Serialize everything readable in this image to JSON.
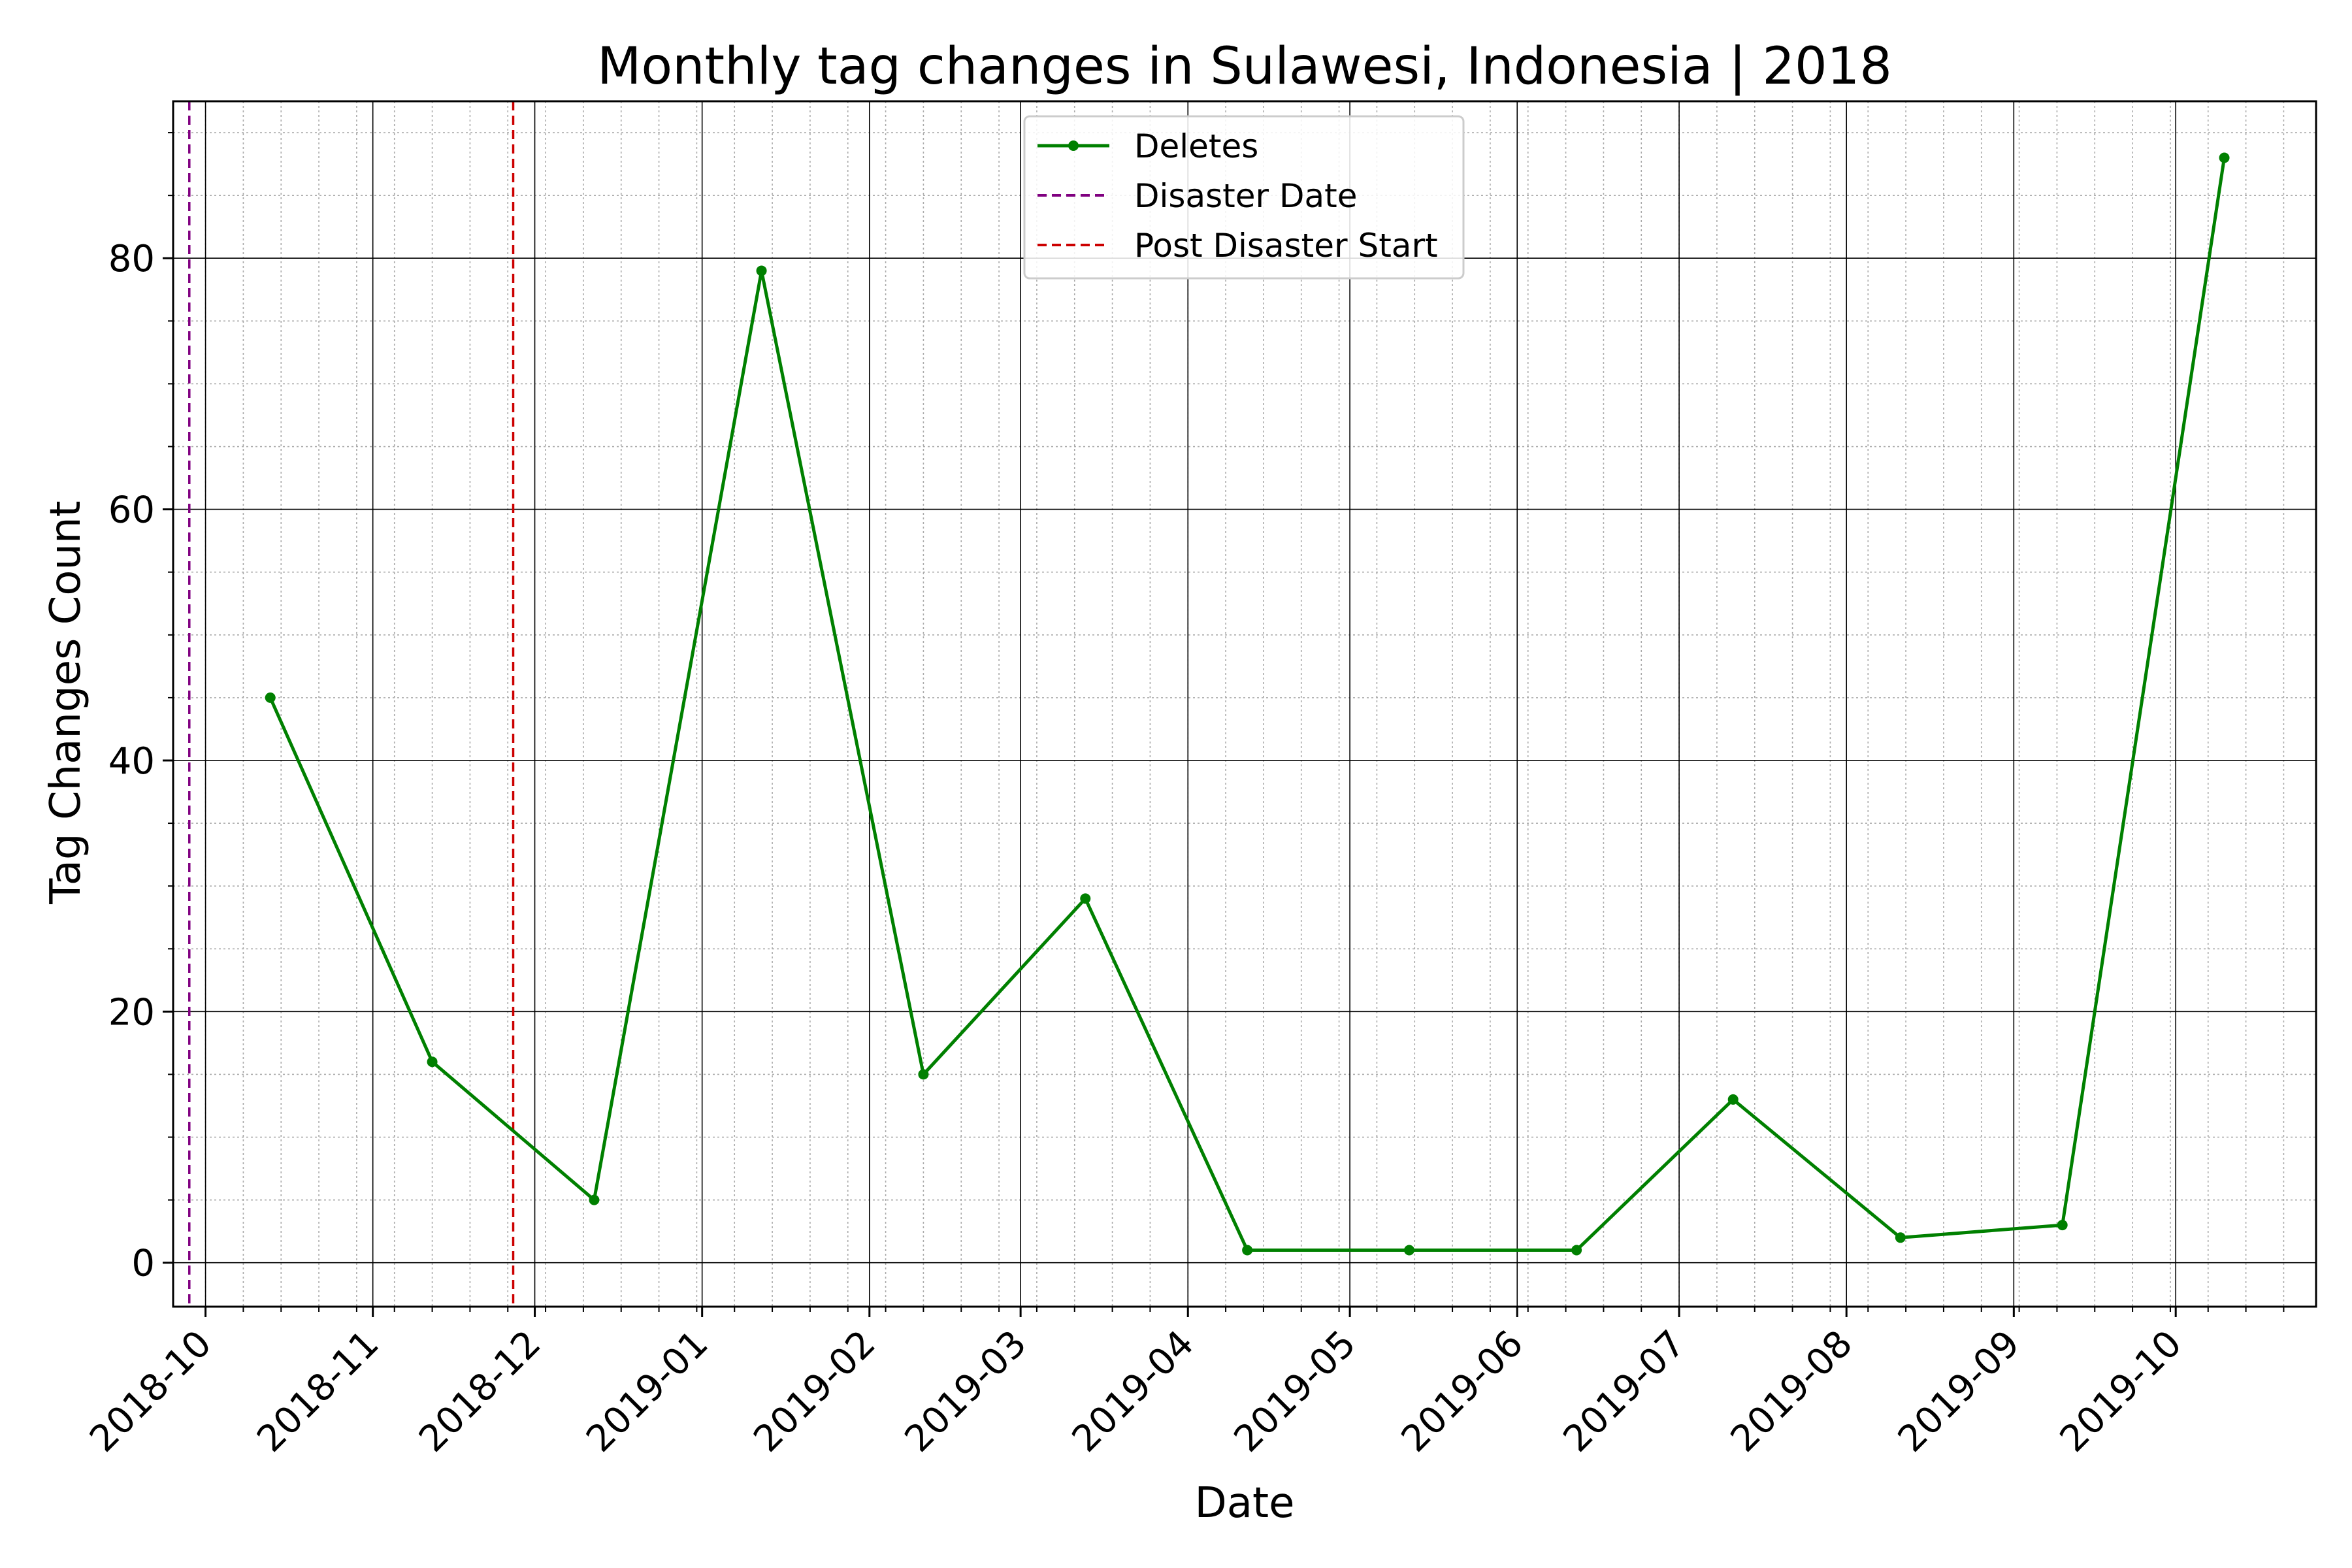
{
  "chart_data": {
    "type": "line",
    "title": "Monthly tag changes in Sulawesi, Indonesia | 2018",
    "xlabel": "Date",
    "ylabel": "Tag Changes Count",
    "xlim": [
      "2018-09-25",
      "2019-10-27"
    ],
    "ylim": [
      -3.5,
      92.5
    ],
    "x_ticks": [
      "2018-10",
      "2018-11",
      "2018-12",
      "2019-01",
      "2019-02",
      "2019-03",
      "2019-04",
      "2019-05",
      "2019-06",
      "2019-07",
      "2019-08",
      "2019-09",
      "2019-10"
    ],
    "x_tick_dates": [
      "2018-10-01",
      "2018-11-01",
      "2018-12-01",
      "2019-01-01",
      "2019-02-01",
      "2019-03-01",
      "2019-04-01",
      "2019-05-01",
      "2019-06-01",
      "2019-07-01",
      "2019-08-01",
      "2019-09-01",
      "2019-10-01"
    ],
    "y_ticks": [
      0,
      20,
      40,
      60,
      80
    ],
    "grid": true,
    "minor_grid": true,
    "legend_position": "top-center",
    "series": [
      {
        "name": "Deletes",
        "color": "#008000",
        "marker": "circle",
        "x": [
          "2018-10-13",
          "2018-11-12",
          "2018-12-12",
          "2019-01-12",
          "2019-02-11",
          "2019-03-13",
          "2019-04-12",
          "2019-05-12",
          "2019-06-12",
          "2019-07-11",
          "2019-08-11",
          "2019-09-10",
          "2019-10-10"
        ],
        "values": [
          45,
          16,
          5,
          79,
          15,
          29,
          1,
          1,
          1,
          13,
          2,
          3,
          88
        ]
      }
    ],
    "vlines": [
      {
        "name": "Disaster Date",
        "x": "2018-09-28",
        "color": "#800080",
        "style": "dashed"
      },
      {
        "name": "Post Disaster Start",
        "x": "2018-11-27",
        "color": "#cc0000",
        "style": "dashed"
      }
    ]
  }
}
